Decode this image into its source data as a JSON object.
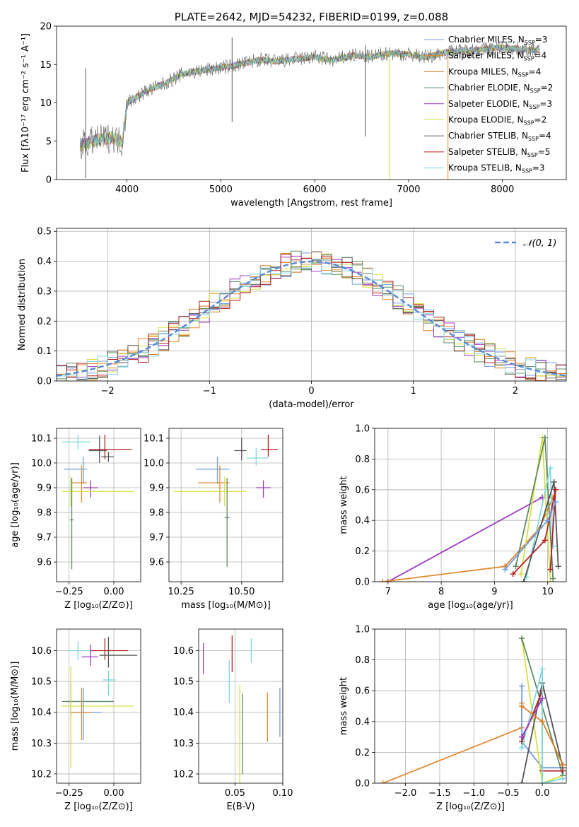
{
  "colors": [
    "#6f9ee0",
    "#e58a2e",
    "#dc7f28",
    "#5e8a64",
    "#a03ac4",
    "#d7e043",
    "#555555",
    "#b32222",
    "#7dd8e0"
  ],
  "chart_data": [
    {
      "id": "spectrum",
      "type": "line",
      "title": "PLATE=2642, MJD=54232, FIBERID=0199, z=0.088",
      "xlabel": "wavelength [Angstrom, rest frame]",
      "ylabel": "Flux [fλ10⁻¹⁷ erg cm⁻² s⁻¹ A⁻¹]",
      "xlim": [
        3250,
        8680
      ],
      "ylim": [
        0,
        20
      ],
      "xticks": [
        4000,
        5000,
        6000,
        7000,
        8000
      ],
      "yticks": [
        0,
        5,
        10,
        15,
        20
      ],
      "legend_position": "top-right",
      "legend": [
        "Chabrier MILES, N_SSP=3",
        "Salpeter MILES, N_SSP=4",
        "Kroupa MILES, N_SSP=4",
        "Chabrier ELODIE, N_SSP=2",
        "Salpeter ELODIE, N_SSP=3",
        "Kroupa ELODIE, N_SSP=2",
        "Chabrier STELIB, N_SSP=4",
        "Salpeter STELIB, N_SSP=5",
        "Kroupa STELIB, N_SSP=3"
      ],
      "envelope": {
        "x": [
          3500,
          3700,
          3850,
          3950,
          4000,
          4200,
          4400,
          4600,
          4800,
          5000,
          5200,
          5400,
          5600,
          5800,
          6000,
          6200,
          6400,
          6600,
          6800,
          7000,
          7200,
          7400,
          7600,
          7800,
          8000,
          8200,
          8400
        ],
        "y": [
          4.5,
          5.2,
          5.5,
          4.8,
          10,
          11.5,
          12.5,
          13.8,
          14.2,
          14.6,
          15.0,
          15.6,
          15.4,
          15.7,
          16.0,
          15.5,
          16.2,
          16.0,
          16.5,
          16.3,
          16.0,
          16.6,
          16.8,
          17.0,
          17.2,
          17.0,
          16.8
        ]
      },
      "spikes": [
        {
          "x": 3560,
          "ylow": 0.2,
          "yhigh": 14.5
        },
        {
          "x": 5120,
          "ylow": 7.5,
          "yhigh": 18.5
        },
        {
          "x": 6540,
          "ylow": 5.6,
          "yhigh": 17.5
        },
        {
          "x": 6800,
          "ylow": 0,
          "yhigh": 16.5
        },
        {
          "x": 7420,
          "ylow": 0,
          "yhigh": 17.0
        }
      ]
    },
    {
      "id": "residuals",
      "type": "histogram",
      "xlabel": "(data-model)/error",
      "ylabel": "Normed distribution",
      "xlim": [
        -2.5,
        2.5
      ],
      "ylim": [
        0,
        0.51
      ],
      "xticks": [
        -2,
        -1,
        0,
        1,
        2
      ],
      "yticks": [
        0.0,
        0.1,
        0.2,
        0.3,
        0.4,
        0.5
      ],
      "bin_width": 0.1,
      "reference_curve": "N(0,1) gaussian",
      "legend": [
        "𝒩(0, 1)"
      ],
      "legend_position": "top-right"
    },
    {
      "id": "age_vs_Z",
      "type": "errorbar",
      "xlabel": "Z [log₁₀(Z/Z⊙)]",
      "ylabel": "age  [log₁₀(age/yr)]",
      "xlim": [
        -0.32,
        0.15
      ],
      "ylim": [
        9.52,
        10.14
      ],
      "xticks": [
        -0.25,
        0.0
      ],
      "yticks": [
        9.6,
        9.7,
        9.8,
        9.9,
        10.0,
        10.1
      ],
      "points": [
        {
          "x": -0.17,
          "y": 9.975,
          "xerr": [
            0.11,
            0.02
          ],
          "yerr": [
            0.06,
            0.05
          ],
          "c": 0
        },
        {
          "x": -0.18,
          "y": 9.92,
          "xerr": [
            0.06,
            0.03
          ],
          "yerr": [
            0.08,
            0.07
          ],
          "c": 1
        },
        {
          "x": -0.08,
          "y": 10.05,
          "xerr": [
            0.06,
            0.04
          ],
          "yerr": [
            0.05,
            0.06
          ],
          "c": 6
        },
        {
          "x": -0.05,
          "y": 10.055,
          "xerr": [
            0.09,
            0.15
          ],
          "yerr": [
            0.04,
            0.06
          ],
          "c": 7
        },
        {
          "x": -0.13,
          "y": 9.9,
          "xerr": [
            0.04,
            0.04
          ],
          "yerr": [
            0.04,
            0.03
          ],
          "c": 4
        },
        {
          "x": -0.2,
          "y": 10.085,
          "xerr": [
            0.09,
            0.07
          ],
          "yerr": [
            0.03,
            0.03
          ],
          "c": 8
        },
        {
          "x": -0.24,
          "y": 9.885,
          "xerr": [
            0.05,
            0.35
          ],
          "yerr": [
            0.06,
            0.06
          ],
          "c": 5
        },
        {
          "x": -0.235,
          "y": 9.77,
          "xerr": [
            0.01,
            0.01
          ],
          "yerr": [
            0.2,
            0.17
          ],
          "c": 3
        },
        {
          "x": -0.03,
          "y": 10.025,
          "xerr": [
            0.04,
            0.03
          ],
          "yerr": [
            0.02,
            0.02
          ],
          "c": 6
        }
      ]
    },
    {
      "id": "age_vs_mass",
      "type": "errorbar",
      "xlabel": "mass [log₁₀(M/M⊙)]",
      "ylabel": "",
      "xlim": [
        10.2,
        10.67
      ],
      "ylim": [
        9.52,
        10.14
      ],
      "xticks": [
        10.25,
        10.5
      ],
      "yticks": [
        9.6,
        9.7,
        9.8,
        9.9,
        10.0,
        10.1
      ],
      "points": [
        {
          "x": 10.5,
          "y": 10.05,
          "xerr": [
            0.03,
            0.02
          ],
          "yerr": [
            0.04,
            0.05
          ],
          "c": 6
        },
        {
          "x": 10.61,
          "y": 10.055,
          "xerr": [
            0.03,
            0.04
          ],
          "yerr": [
            0.03,
            0.06
          ],
          "c": 7
        },
        {
          "x": 10.56,
          "y": 10.02,
          "xerr": [
            0.04,
            0.05
          ],
          "yerr": [
            0.03,
            0.04
          ],
          "c": 8
        },
        {
          "x": 10.4,
          "y": 9.975,
          "xerr": [
            0.09,
            0.05
          ],
          "yerr": [
            0.06,
            0.05
          ],
          "c": 0
        },
        {
          "x": 10.41,
          "y": 9.92,
          "xerr": [
            0.09,
            0.04
          ],
          "yerr": [
            0.08,
            0.07
          ],
          "c": 1
        },
        {
          "x": 10.59,
          "y": 9.9,
          "xerr": [
            0.03,
            0.03
          ],
          "yerr": [
            0.04,
            0.03
          ],
          "c": 4
        },
        {
          "x": 10.43,
          "y": 9.885,
          "xerr": [
            0.21,
            0.09
          ],
          "yerr": [
            0.06,
            0.06
          ],
          "c": 5
        },
        {
          "x": 10.44,
          "y": 9.78,
          "xerr": [
            0.01,
            0.01
          ],
          "yerr": [
            0.2,
            0.16
          ],
          "c": 3
        }
      ]
    },
    {
      "id": "weight_vs_age",
      "type": "line",
      "xlabel": "age  [log₁₀(age/yr)]",
      "ylabel": "mass weight",
      "xlim": [
        6.75,
        10.35
      ],
      "ylim": [
        0,
        1.0
      ],
      "xticks": [
        7,
        8,
        9,
        10
      ],
      "yticks": [
        0.0,
        0.2,
        0.4,
        0.6,
        0.8,
        1.0
      ],
      "series": [
        {
          "x": [
            7.0,
            9.9
          ],
          "y": [
            0.0,
            0.55
          ],
          "c": 4
        },
        {
          "x": [
            6.9,
            9.2
          ],
          "y": [
            0.0,
            0.1
          ],
          "c": 1
        },
        {
          "x": [
            9.2,
            9.85,
            10.1
          ],
          "y": [
            0.1,
            0.35,
            0.55
          ],
          "c": 2
        },
        {
          "x": [
            9.5,
            9.9,
            10.05
          ],
          "y": [
            0.05,
            0.94,
            0.0
          ],
          "c": 5
        },
        {
          "x": [
            9.4,
            9.95,
            10.1
          ],
          "y": [
            0.1,
            0.94,
            0.02
          ],
          "c": 3
        },
        {
          "x": [
            9.6,
            10.05,
            10.1
          ],
          "y": [
            0.03,
            0.74,
            0.23
          ],
          "c": 8
        },
        {
          "x": [
            9.55,
            10.12,
            10.2
          ],
          "y": [
            0.0,
            0.65,
            0.1
          ],
          "c": 6
        },
        {
          "x": [
            9.35,
            9.95,
            10.15,
            10.05
          ],
          "y": [
            0.05,
            0.27,
            0.6,
            0.08
          ],
          "c": 7
        },
        {
          "x": [
            9.2,
            10.0,
            10.15
          ],
          "y": [
            0.08,
            0.4,
            0.52
          ],
          "c": 0
        }
      ]
    },
    {
      "id": "mass_vs_Z",
      "type": "errorbar",
      "xlabel": "Z [log₁₀(Z/Z⊙)]",
      "ylabel": "mass [log₁₀(M/M⊙)]",
      "xlim": [
        -0.32,
        0.15
      ],
      "ylim": [
        10.17,
        10.67
      ],
      "xticks": [
        -0.25,
        0.0
      ],
      "yticks": [
        10.2,
        10.3,
        10.4,
        10.5,
        10.6
      ],
      "points": [
        {
          "x": -0.05,
          "y": 10.6,
          "xerr": [
            0.09,
            0.13
          ],
          "yerr": [
            0.03,
            0.04
          ],
          "c": 7
        },
        {
          "x": -0.03,
          "y": 10.585,
          "xerr": [
            0.05,
            0.16
          ],
          "yerr": [
            0.04,
            0.06
          ],
          "c": 6
        },
        {
          "x": -0.13,
          "y": 10.58,
          "xerr": [
            0.05,
            0.04
          ],
          "yerr": [
            0.03,
            0.04
          ],
          "c": 4
        },
        {
          "x": -0.2,
          "y": 10.6,
          "xerr": [
            0.06,
            0.07
          ],
          "yerr": [
            0.03,
            0.03
          ],
          "c": 8
        },
        {
          "x": -0.03,
          "y": 10.505,
          "xerr": [
            0.03,
            0.04
          ],
          "yerr": [
            0.05,
            0.03
          ],
          "c": 8
        },
        {
          "x": -0.24,
          "y": 10.435,
          "xerr": [
            0.05,
            0.24
          ],
          "yerr": [
            0.05,
            0.06
          ],
          "c": 3
        },
        {
          "x": -0.24,
          "y": 10.42,
          "xerr": [
            0.05,
            0.35
          ],
          "yerr": [
            0.2,
            0.13
          ],
          "c": 5
        },
        {
          "x": -0.17,
          "y": 10.4,
          "xerr": [
            0.06,
            0.1
          ],
          "yerr": [
            0.09,
            0.08
          ],
          "c": 0
        },
        {
          "x": -0.18,
          "y": 10.4,
          "xerr": [
            0.06,
            0.06
          ],
          "yerr": [
            0.09,
            0.08
          ],
          "c": 1
        }
      ]
    },
    {
      "id": "mass_vs_EBV",
      "type": "errorbar",
      "xlabel": "E(B-V)",
      "ylabel": "",
      "xlim": [
        0.012,
        0.1
      ],
      "ylim": [
        10.17,
        10.67
      ],
      "xticks": [
        0.05,
        0.1
      ],
      "yticks": [
        10.2,
        10.3,
        10.4,
        10.5,
        10.6
      ],
      "points": [
        {
          "x": 0.017,
          "y": 10.575,
          "xerr": [
            0,
            0
          ],
          "yerr": [
            0.05,
            0.05
          ],
          "c": 4
        },
        {
          "x": 0.044,
          "y": 10.5,
          "xerr": [
            0,
            0
          ],
          "yerr": [
            0.07,
            0.07
          ],
          "c": 8
        },
        {
          "x": 0.047,
          "y": 10.59,
          "xerr": [
            0,
            0
          ],
          "yerr": [
            0.06,
            0.06
          ],
          "c": 7
        },
        {
          "x": 0.055,
          "y": 10.33,
          "xerr": [
            0,
            0
          ],
          "yerr": [
            0.16,
            0.16
          ],
          "c": 5
        },
        {
          "x": 0.058,
          "y": 10.33,
          "xerr": [
            0,
            0
          ],
          "yerr": [
            0.13,
            0.13
          ],
          "c": 3
        },
        {
          "x": 0.067,
          "y": 10.6,
          "xerr": [
            0,
            0
          ],
          "yerr": [
            0.04,
            0.04
          ],
          "c": 8
        },
        {
          "x": 0.084,
          "y": 10.385,
          "xerr": [
            0,
            0
          ],
          "yerr": [
            0.08,
            0.08
          ],
          "c": 1
        },
        {
          "x": 0.097,
          "y": 10.4,
          "xerr": [
            0,
            0
          ],
          "yerr": [
            0.08,
            0.08
          ],
          "c": 0
        }
      ]
    },
    {
      "id": "weight_vs_Z",
      "type": "line",
      "xlabel": "Z [log₁₀(Z/Z⊙)]",
      "ylabel": "mass weight",
      "xlim": [
        -2.45,
        0.35
      ],
      "ylim": [
        0,
        1.0
      ],
      "xticks": [
        -2.0,
        -1.5,
        -1.0,
        -0.5,
        0.0
      ],
      "yticks": [
        0.0,
        0.2,
        0.4,
        0.6,
        0.8,
        1.0
      ],
      "series": [
        {
          "x": [
            -2.33,
            -0.3,
            -0.3
          ],
          "y": [
            0.0,
            0.36,
            0.52
          ],
          "c": 1
        },
        {
          "x": [
            -0.3,
            -0.3,
            0.0,
            0.3
          ],
          "y": [
            0.63,
            0.27,
            0.1,
            0.1
          ],
          "c": 0
        },
        {
          "x": [
            -0.3,
            0.0,
            0.3
          ],
          "y": [
            0.94,
            0.0,
            0.05
          ],
          "c": 5
        },
        {
          "x": [
            -0.3,
            0.3
          ],
          "y": [
            0.94,
            0.05
          ],
          "c": 3
        },
        {
          "x": [
            -0.3,
            0.0,
            0.3
          ],
          "y": [
            0.0,
            0.65,
            0.1
          ],
          "c": 6
        },
        {
          "x": [
            -0.3,
            0.0,
            0.0,
            0.3
          ],
          "y": [
            0.27,
            0.6,
            0.08,
            0.08
          ],
          "c": 7
        },
        {
          "x": [
            -0.3,
            0.0,
            0.0,
            0.3
          ],
          "y": [
            0.23,
            0.74,
            0.0,
            0.03
          ],
          "c": 8
        },
        {
          "x": [
            -0.3,
            0.0
          ],
          "y": [
            0.3,
            0.55
          ],
          "c": 4
        },
        {
          "x": [
            -0.3,
            0.0,
            0.3
          ],
          "y": [
            0.5,
            0.4,
            0.12
          ],
          "c": 2
        }
      ]
    }
  ]
}
